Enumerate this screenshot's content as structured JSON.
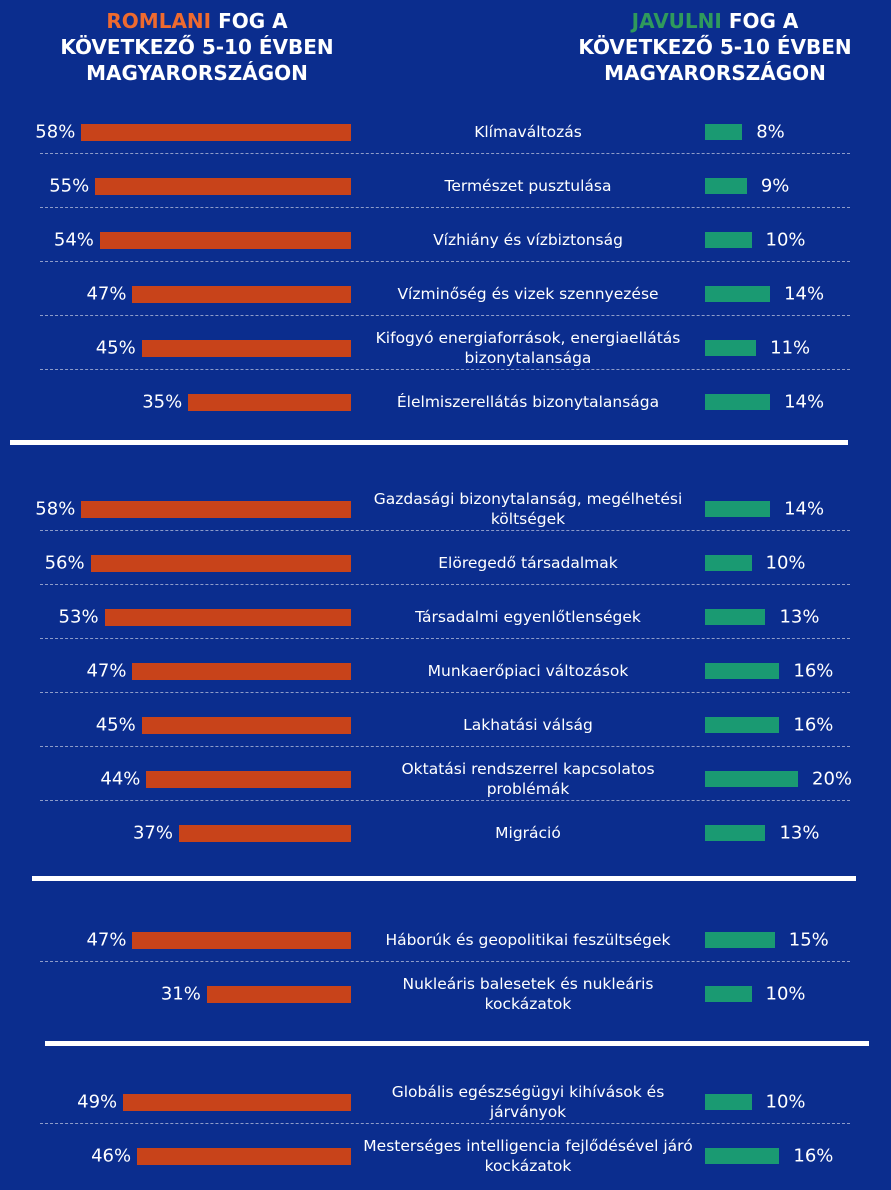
{
  "chart_data": {
    "type": "bar",
    "left_header": {
      "highlight": "ROMLANI",
      "rest": "FOG A KÖVETKEZŐ 5-10 ÉVBEN MAGYARORSZÁGON",
      "highlight_color": "#ee6a2f"
    },
    "right_header": {
      "highlight": "JAVULNI",
      "rest": "FOG A KÖVETKEZŐ 5-10 ÉVBEN MAGYARORSZÁGON",
      "highlight_color": "#2f9a5c"
    },
    "xlim": [
      0,
      100
    ],
    "groups": [
      {
        "categories": [
          "Klímaváltozás",
          "Természet pusztulása",
          "Vízhiány és vízbiztonság",
          "Vízminőség és vizek szennyezése",
          "Kifogyó energiaforrások, energiaellátás bizonytalansága",
          "Élelmiszerellátás bizonytalansága"
        ],
        "series": [
          {
            "color": "#c8431a",
            "values": [
              58,
              55,
              54,
              47,
              45,
              35
            ],
            "value_labels": [
              "58%",
              "55%",
              "54%",
              "47%",
              "45%",
              "35%"
            ]
          },
          {
            "color": "#1a9a72",
            "values": [
              8,
              9,
              10,
              14,
              11,
              14
            ],
            "value_labels": [
              "8%",
              "9%",
              "10%",
              "14%",
              "11%",
              "14%"
            ]
          }
        ]
      },
      {
        "categories": [
          "Gazdasági bizonytalanság, megélhetési költségek",
          "Elöregedő társadalmak",
          "Társadalmi egyenlőtlenségek",
          "Munkaerőpiaci változások",
          "Lakhatási válság",
          "Oktatási rendszerrel kapcsolatos problémák",
          "Migráció"
        ],
        "series": [
          {
            "color": "#c8431a",
            "values": [
              58,
              56,
              53,
              47,
              45,
              44,
              37
            ],
            "value_labels": [
              "58%",
              "56%",
              "53%",
              "47%",
              "45%",
              "44%",
              "37%"
            ]
          },
          {
            "color": "#1a9a72",
            "values": [
              14,
              10,
              13,
              16,
              16,
              20,
              13
            ],
            "value_labels": [
              "14%",
              "10%",
              "13%",
              "16%",
              "16%",
              "20%",
              "13%"
            ]
          }
        ]
      },
      {
        "categories": [
          "Háborúk és geopolitikai feszültségek",
          "Nukleáris balesetek és nukleáris kockázatok"
        ],
        "series": [
          {
            "color": "#c8431a",
            "values": [
              47,
              31
            ],
            "value_labels": [
              "47%",
              "31%"
            ]
          },
          {
            "color": "#1a9a72",
            "values": [
              15,
              10
            ],
            "value_labels": [
              "15%",
              "10%"
            ]
          }
        ]
      },
      {
        "categories": [
          "Globális egészségügyi kihívások és járványok",
          "Mesterséges intelligencia fejlődésével járó kockázatok"
        ],
        "series": [
          {
            "color": "#c8431a",
            "values": [
              49,
              46
            ],
            "value_labels": [
              "49%",
              "46%"
            ]
          },
          {
            "color": "#1a9a72",
            "values": [
              10,
              16
            ],
            "value_labels": [
              "10%",
              "16%"
            ]
          }
        ]
      }
    ]
  }
}
